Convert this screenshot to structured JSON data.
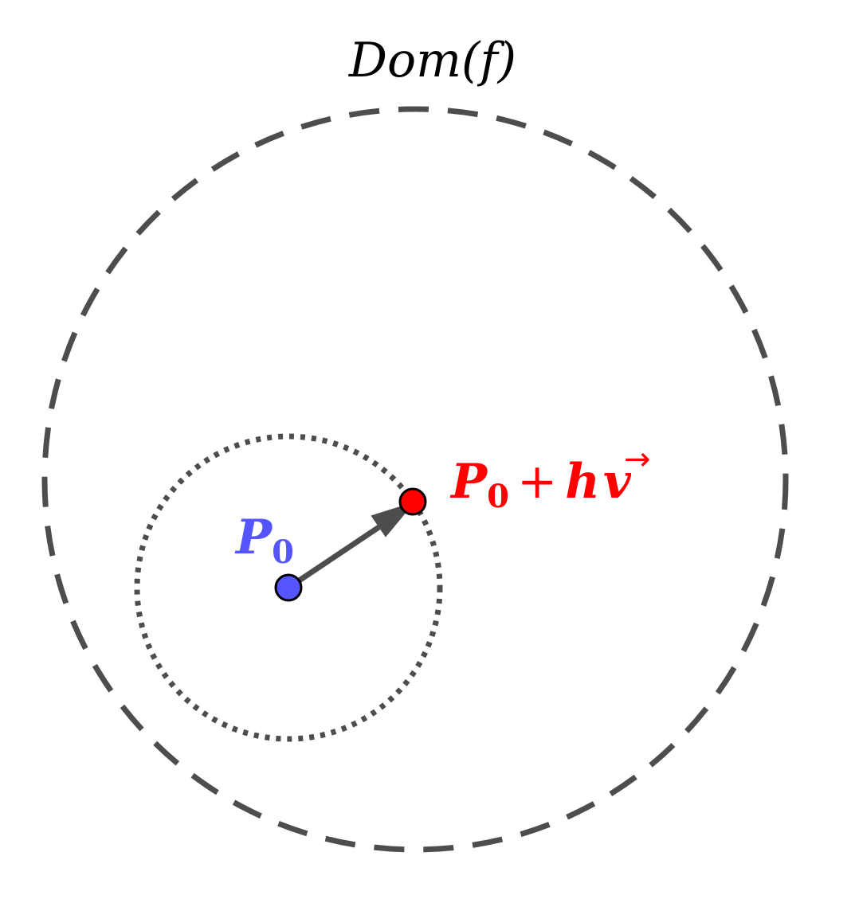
{
  "diagram": {
    "domain_label": "Dom(f)",
    "point_p0": {
      "label": "P",
      "subscript": "0",
      "color": "#5555ff"
    },
    "point_moved": {
      "label_main": "P",
      "label_sub": "0",
      "label_plus": "+",
      "label_h": "h",
      "label_v": "v",
      "vector_arrow": "→",
      "color": "#ff0000"
    },
    "stroke_color": "#4d4d4d",
    "outer_boundary_style": "dashed",
    "inner_circle_style": "dotted"
  }
}
